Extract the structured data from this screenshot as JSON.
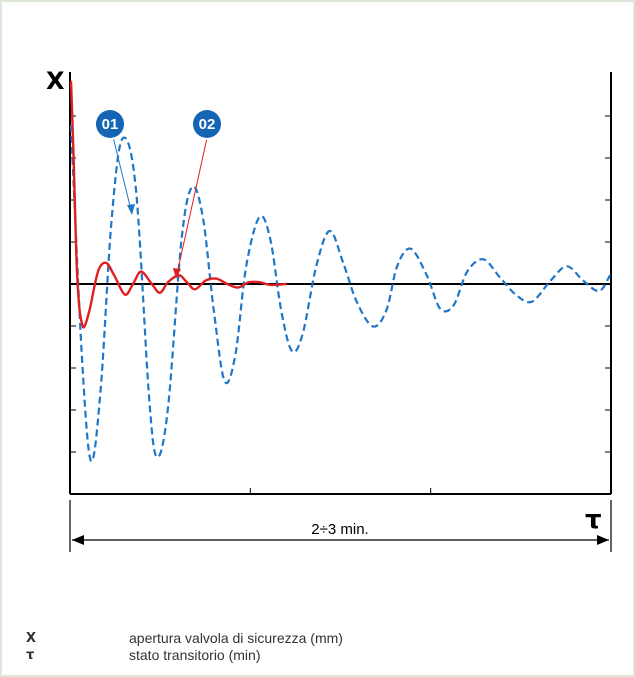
{
  "chart_data": {
    "type": "line",
    "ylabel": "X",
    "xlabel": "τ",
    "span_label": "2÷3 min.",
    "xlim": [
      0,
      10
    ],
    "ylim": [
      -1.2,
      1.2
    ],
    "grid": false,
    "series": [
      {
        "name": "01",
        "color": "#1f77c8",
        "style": "dashed",
        "x": [
          0,
          0.2,
          0.37,
          0.55,
          0.75,
          0.95,
          1.2,
          1.45,
          1.6,
          1.8,
          2.05,
          2.25,
          2.45,
          2.65,
          2.85,
          3.05,
          3.25,
          3.5,
          3.7,
          3.9,
          4.1,
          4.3,
          4.55,
          4.8,
          5.05,
          5.3,
          5.6,
          5.85,
          6.05,
          6.3,
          6.6,
          6.85,
          7.1,
          7.35,
          7.65,
          7.95,
          8.25,
          8.55,
          8.9,
          9.2,
          9.5,
          9.8,
          10
        ],
        "y": [
          0.9,
          -0.4,
          -1.0,
          -0.6,
          0.35,
          0.82,
          0.55,
          -0.65,
          -0.98,
          -0.7,
          0.25,
          0.55,
          0.37,
          -0.15,
          -0.55,
          -0.4,
          0.1,
          0.38,
          0.25,
          -0.15,
          -0.38,
          -0.28,
          0.1,
          0.3,
          0.12,
          -0.1,
          -0.24,
          -0.15,
          0.1,
          0.2,
          0.05,
          -0.14,
          -0.12,
          0.07,
          0.14,
          0.04,
          -0.06,
          -0.1,
          0.02,
          0.1,
          0.02,
          -0.04,
          0.05
        ]
      },
      {
        "name": "02",
        "color": "#e02020",
        "style": "solid",
        "x": [
          0,
          0.05,
          0.1,
          0.15,
          0.2,
          0.25,
          0.35,
          0.5,
          0.65,
          0.8,
          1.0,
          1.15,
          1.3,
          1.5,
          1.65,
          1.8,
          2.0,
          2.15,
          2.3,
          2.5,
          2.7,
          2.9,
          3.1,
          3.3,
          3.5,
          3.7,
          4.0
        ],
        "y": [
          1.15,
          0.7,
          0.15,
          -0.12,
          -0.22,
          -0.24,
          -0.14,
          0.07,
          0.12,
          0.05,
          -0.06,
          0.0,
          0.07,
          0.0,
          -0.05,
          0.01,
          0.05,
          0.01,
          -0.03,
          0.02,
          0.03,
          0.0,
          -0.02,
          0.01,
          0.01,
          -0.005,
          0.0
        ]
      }
    ]
  },
  "badges": [
    {
      "label": "01",
      "color": "#1565b5"
    },
    {
      "label": "02",
      "color": "#1565b5"
    }
  ],
  "legend": [
    {
      "symbol": "X",
      "description": "apertura valvola di sicurezza (mm)"
    },
    {
      "symbol": "τ",
      "description": "stato transitorio (min)"
    }
  ]
}
